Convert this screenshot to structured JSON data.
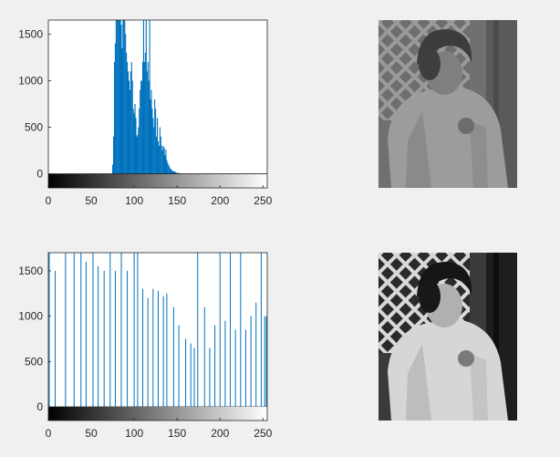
{
  "window": {
    "background": "#f0f0f0",
    "title": ""
  },
  "colors": {
    "bar": "#0072bd",
    "axis": "#262626",
    "axes_background": "#ffffff",
    "figure_background": "#f0f0f0"
  },
  "images": [
    {
      "name": "original-image",
      "description_icon": "photo-icon",
      "tone": "low-contrast"
    },
    {
      "name": "equalized-image",
      "description_icon": "photo-icon",
      "tone": "high-contrast"
    }
  ],
  "chart_data": [
    {
      "type": "bar",
      "title": "",
      "xlabel": "",
      "ylabel": "",
      "xlim": [
        0,
        255
      ],
      "ylim": [
        -150,
        1650
      ],
      "xticks": [
        0,
        50,
        100,
        150,
        200,
        250
      ],
      "yticks": [
        0,
        500,
        1000,
        1500
      ],
      "grid": false,
      "colorbar": "grayscale",
      "x": [
        75,
        76,
        77,
        78,
        79,
        80,
        81,
        82,
        83,
        84,
        85,
        86,
        87,
        88,
        89,
        90,
        91,
        92,
        93,
        94,
        95,
        96,
        97,
        98,
        99,
        100,
        101,
        102,
        103,
        104,
        105,
        106,
        107,
        108,
        109,
        110,
        111,
        112,
        113,
        114,
        115,
        116,
        117,
        118,
        119,
        120,
        121,
        122,
        123,
        124,
        125,
        126,
        127,
        128,
        129,
        130,
        131,
        132,
        133,
        134,
        135,
        136,
        137,
        138,
        139,
        140,
        141,
        142,
        143,
        144,
        145,
        146,
        147,
        148,
        149,
        150,
        151,
        152,
        153,
        154,
        155,
        156,
        157,
        158,
        159,
        160,
        162,
        164,
        166,
        168,
        170,
        175,
        180,
        190
      ],
      "values": [
        100,
        400,
        1200,
        1400,
        1650,
        1650,
        1650,
        1650,
        1650,
        1650,
        1600,
        1350,
        1650,
        1650,
        1650,
        1500,
        1300,
        1200,
        1100,
        1000,
        900,
        1100,
        1200,
        1000,
        700,
        650,
        750,
        600,
        400,
        420,
        500,
        700,
        900,
        1000,
        1000,
        1200,
        1650,
        1200,
        1300,
        1650,
        1100,
        1200,
        1000,
        1650,
        800,
        900,
        700,
        600,
        500,
        800,
        700,
        400,
        600,
        350,
        300,
        500,
        400,
        300,
        250,
        300,
        280,
        200,
        260,
        150,
        120,
        100,
        80,
        60,
        50,
        40,
        30,
        25,
        30,
        20,
        15,
        10,
        12,
        8,
        6,
        5,
        4,
        3,
        3,
        2,
        2,
        2,
        2,
        1,
        1,
        1,
        1,
        1,
        1,
        1
      ]
    },
    {
      "type": "bar",
      "title": "",
      "xlabel": "",
      "ylabel": "",
      "xlim": [
        0,
        255
      ],
      "ylim": [
        -150,
        1700
      ],
      "xticks": [
        0,
        50,
        100,
        150,
        200,
        250
      ],
      "yticks": [
        0,
        500,
        1000,
        1500
      ],
      "grid": false,
      "colorbar": "grayscale",
      "x": [
        1,
        8,
        20,
        30,
        38,
        44,
        52,
        58,
        65,
        72,
        78,
        85,
        92,
        100,
        104,
        110,
        116,
        122,
        128,
        134,
        138,
        146,
        152,
        160,
        166,
        170,
        174,
        182,
        188,
        194,
        200,
        206,
        212,
        218,
        224,
        230,
        236,
        242,
        248,
        252,
        254
      ],
      "values": [
        1700,
        1500,
        1700,
        1700,
        1700,
        1600,
        1700,
        1550,
        1500,
        1700,
        1500,
        1700,
        1500,
        1700,
        1700,
        1300,
        1200,
        1300,
        1280,
        1220,
        1250,
        1100,
        900,
        750,
        700,
        650,
        1700,
        1100,
        650,
        900,
        1700,
        950,
        1700,
        850,
        1700,
        850,
        1000,
        1150,
        1700,
        1000,
        1000
      ]
    }
  ]
}
